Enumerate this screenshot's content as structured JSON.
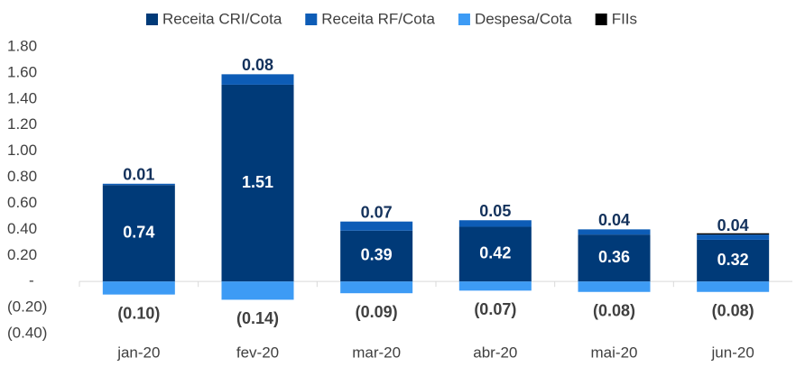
{
  "chart_data": {
    "type": "bar",
    "stacked": true,
    "categories": [
      "jan-20",
      "fev-20",
      "mar-20",
      "abr-20",
      "mai-20",
      "jun-20"
    ],
    "series": [
      {
        "name": "Receita CRI/Cota",
        "color": "#003a78",
        "values": [
          0.74,
          1.51,
          0.39,
          0.42,
          0.36,
          0.32
        ]
      },
      {
        "name": "Receita RF/Cota",
        "color": "#0d5cb6",
        "values": [
          0.01,
          0.08,
          0.07,
          0.05,
          0.04,
          0.04
        ]
      },
      {
        "name": "Despesa/Cota",
        "color": "#3d9bf5",
        "values": [
          -0.1,
          -0.14,
          -0.09,
          -0.07,
          -0.08,
          -0.08
        ],
        "value_labels": [
          "(0.10)",
          "(0.14)",
          "(0.09)",
          "(0.07)",
          "(0.08)",
          "(0.08)"
        ]
      },
      {
        "name": "FIIs",
        "color": "#000000",
        "values": [
          0,
          0,
          0,
          0,
          0,
          0.01
        ]
      }
    ],
    "ylim": [
      -0.4,
      1.8
    ],
    "yticks": [
      {
        "value": -0.4,
        "label": "(0.40)"
      },
      {
        "value": -0.2,
        "label": "(0.20)"
      },
      {
        "value": 0,
        "label": "-"
      },
      {
        "value": 0.2,
        "label": "0.20"
      },
      {
        "value": 0.4,
        "label": "0.40"
      },
      {
        "value": 0.6,
        "label": "0.60"
      },
      {
        "value": 0.8,
        "label": "0.80"
      },
      {
        "value": 1.0,
        "label": "1.00"
      },
      {
        "value": 1.2,
        "label": "1.20"
      },
      {
        "value": 1.4,
        "label": "1.40"
      },
      {
        "value": 1.6,
        "label": "1.60"
      },
      {
        "value": 1.8,
        "label": "1.80"
      }
    ],
    "legend": "top"
  }
}
